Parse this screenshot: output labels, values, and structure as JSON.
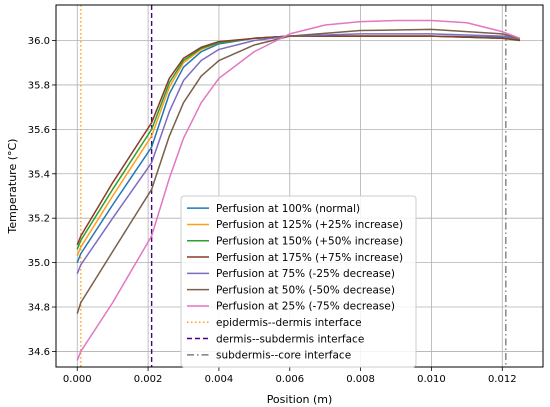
{
  "chart_data": {
    "type": "line",
    "xlabel": "Position (m)",
    "ylabel": "Temperature (°C)",
    "xlim": [
      -0.0006,
      0.01315
    ],
    "ylim": [
      34.53,
      36.16
    ],
    "xticks": [
      0.0,
      0.002,
      0.004,
      0.006,
      0.008,
      0.01,
      0.012
    ],
    "xtick_labels": [
      "0.000",
      "0.002",
      "0.004",
      "0.006",
      "0.008",
      "0.010",
      "0.012"
    ],
    "yticks": [
      34.6,
      34.8,
      35.0,
      35.2,
      35.4,
      35.6,
      35.8,
      36.0
    ],
    "ytick_labels": [
      "34.6",
      "34.8",
      "35.0",
      "35.2",
      "35.4",
      "35.6",
      "35.8",
      "36.0"
    ],
    "grid": true,
    "legend_position": "lower-center",
    "series": [
      {
        "name": "Perfusion at 100% (normal)",
        "color": "#1f77b4",
        "x": [
          0.0,
          0.0001,
          0.001,
          0.0021,
          0.0026,
          0.003,
          0.0035,
          0.004,
          0.005,
          0.006,
          0.008,
          0.01,
          0.012,
          0.0125
        ],
        "y": [
          35.0,
          35.04,
          35.26,
          35.52,
          35.76,
          35.88,
          35.95,
          35.985,
          36.01,
          36.02,
          36.02,
          36.02,
          36.015,
          36.01
        ]
      },
      {
        "name": "Perfusion at 125% (+25% increase)",
        "color": "#ff9f1c",
        "x": [
          0.0,
          0.0001,
          0.001,
          0.0021,
          0.0026,
          0.003,
          0.0035,
          0.004,
          0.005,
          0.006,
          0.008,
          0.01,
          0.012,
          0.0125
        ],
        "y": [
          35.03,
          35.07,
          35.3,
          35.57,
          35.79,
          35.9,
          35.96,
          35.99,
          36.01,
          36.02,
          36.02,
          36.02,
          36.01,
          36.005
        ]
      },
      {
        "name": "Perfusion at 150% (+50% increase)",
        "color": "#2ca02c",
        "x": [
          0.0,
          0.0001,
          0.001,
          0.0021,
          0.0026,
          0.003,
          0.0035,
          0.004,
          0.005,
          0.006,
          0.008,
          0.01,
          0.012,
          0.0125
        ],
        "y": [
          35.06,
          35.1,
          35.33,
          35.6,
          35.81,
          35.91,
          35.965,
          35.99,
          36.01,
          36.02,
          36.02,
          36.02,
          36.01,
          36.005
        ]
      },
      {
        "name": "Perfusion at 175% (+75% increase)",
        "color": "#8c3a2b",
        "x": [
          0.0,
          0.0001,
          0.001,
          0.0021,
          0.0026,
          0.003,
          0.0035,
          0.004,
          0.005,
          0.006,
          0.008,
          0.01,
          0.012,
          0.0125
        ],
        "y": [
          35.08,
          35.12,
          35.36,
          35.63,
          35.83,
          35.92,
          35.97,
          35.995,
          36.01,
          36.02,
          36.02,
          36.02,
          36.01,
          36.0
        ]
      },
      {
        "name": "Perfusion at 75% (-25% decrease)",
        "color": "#7f6bc2",
        "x": [
          0.0,
          0.0001,
          0.001,
          0.0021,
          0.0026,
          0.003,
          0.0035,
          0.004,
          0.005,
          0.006,
          0.008,
          0.01,
          0.012,
          0.0125
        ],
        "y": [
          34.95,
          34.99,
          35.2,
          35.45,
          35.68,
          35.82,
          35.91,
          35.96,
          36.0,
          36.02,
          36.03,
          36.03,
          36.02,
          36.01
        ]
      },
      {
        "name": "Perfusion at 50% (-50% decrease)",
        "color": "#7a5f4a",
        "x": [
          0.0,
          0.0001,
          0.001,
          0.0021,
          0.0026,
          0.003,
          0.0035,
          0.004,
          0.005,
          0.006,
          0.008,
          0.01,
          0.012,
          0.0125
        ],
        "y": [
          34.77,
          34.82,
          35.05,
          35.33,
          35.57,
          35.72,
          35.84,
          35.91,
          35.98,
          36.02,
          36.045,
          36.05,
          36.03,
          36.01
        ]
      },
      {
        "name": "Perfusion at 25% (-75% decrease)",
        "color": "#e377c2",
        "x": [
          0.0,
          0.0001,
          0.001,
          0.0021,
          0.0026,
          0.003,
          0.0035,
          0.004,
          0.005,
          0.006,
          0.007,
          0.008,
          0.009,
          0.01,
          0.011,
          0.012,
          0.0125
        ],
        "y": [
          34.56,
          34.6,
          34.82,
          35.12,
          35.38,
          35.56,
          35.72,
          35.83,
          35.95,
          36.03,
          36.07,
          36.085,
          36.09,
          36.09,
          36.08,
          36.04,
          36.01
        ]
      }
    ],
    "vlines": [
      {
        "name": "epidermis--dermis interface",
        "x": 0.0001,
        "color": "#ff9f1c",
        "style": "dotted"
      },
      {
        "name": "dermis--subdermis interface",
        "x": 0.0021,
        "color": "#4b0082",
        "style": "dashed"
      },
      {
        "name": "subdermis--core interface",
        "x": 0.0121,
        "color": "#7f7f7f",
        "style": "dashdot"
      }
    ]
  }
}
